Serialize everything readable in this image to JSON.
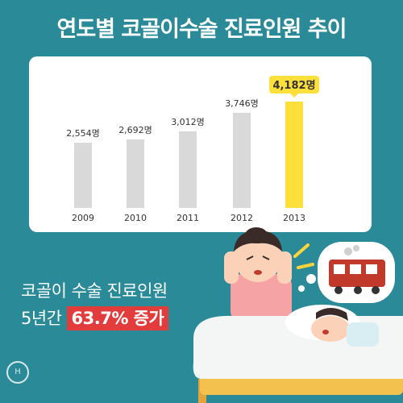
{
  "title": "연도별 코골이수술 진료인원 추이",
  "chart_data": {
    "type": "bar",
    "categories": [
      "2009",
      "2010",
      "2011",
      "2012",
      "2013"
    ],
    "values": [
      2554,
      2692,
      3012,
      3746,
      4182
    ],
    "data_labels": [
      "2,554명",
      "2,692명",
      "3,012명",
      "3,746명",
      "4,182명"
    ],
    "highlight_index": 4,
    "colors": {
      "bar": "#d9d9d9",
      "highlight": "#ffe03a"
    },
    "ylim": [
      0,
      4182
    ],
    "grid": false
  },
  "headline": {
    "line1": "코골이 수술 진료인원",
    "line2_prefix": "5년간",
    "badge": "63.7% 증가"
  },
  "colors": {
    "background": "#2a8a98",
    "badge": "#e23c3c",
    "card": "#ffffff"
  },
  "icons": [
    "woman-covering-ears-icon",
    "snoring-man-in-bed-icon",
    "train-dream-bubble-icon",
    "corner-logo-icon"
  ]
}
